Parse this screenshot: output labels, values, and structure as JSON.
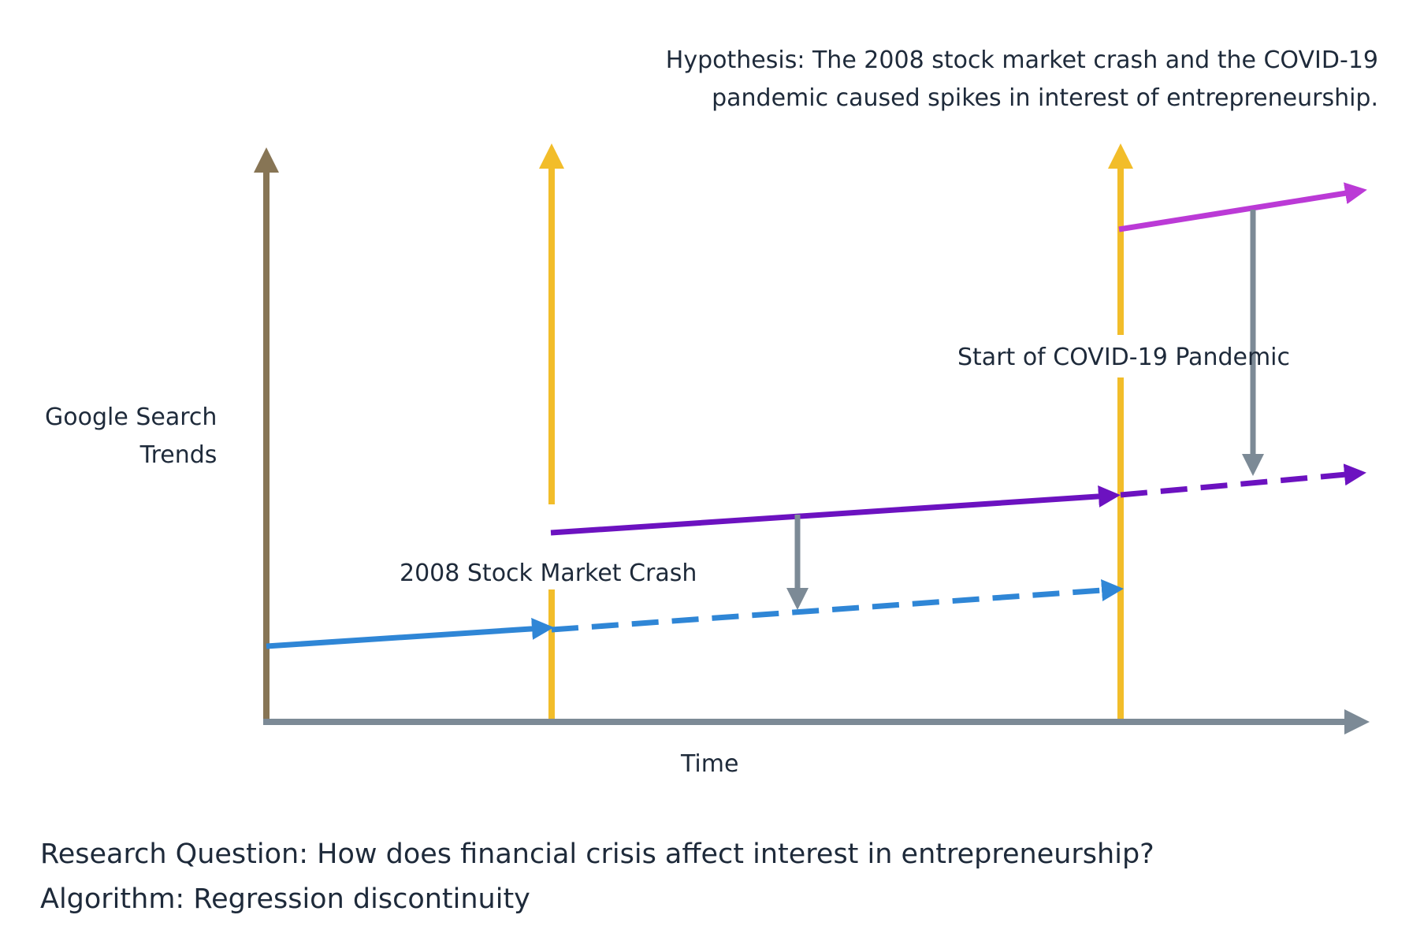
{
  "hypothesis": {
    "line1": "Hypothesis: The 2008 stock market crash and the COVID-19",
    "line2": "pandemic caused spikes in interest of entrepreneurship."
  },
  "y_axis_label": {
    "line1": "Google Search",
    "line2": "Trends"
  },
  "x_axis_label": "Time",
  "events": {
    "crash": "2008 Stock Market Crash",
    "covid": "Start of COVID-19 Pandemic"
  },
  "research_question": "Research Question: How does financial crisis affect interest in entrepreneurship?",
  "algorithm": "Algorithm: Regression discontinuity",
  "colors": {
    "y_axis": "#877555",
    "x_axis": "#7c8a96",
    "event_line": "#f2bd2a",
    "baseline_trend": "#2f86d6",
    "after_crash_trend": "#6c12c0",
    "after_covid_trend": "#bb3ad6",
    "effect_arrow": "#7c8a96",
    "text": "#1e2a3a"
  }
}
